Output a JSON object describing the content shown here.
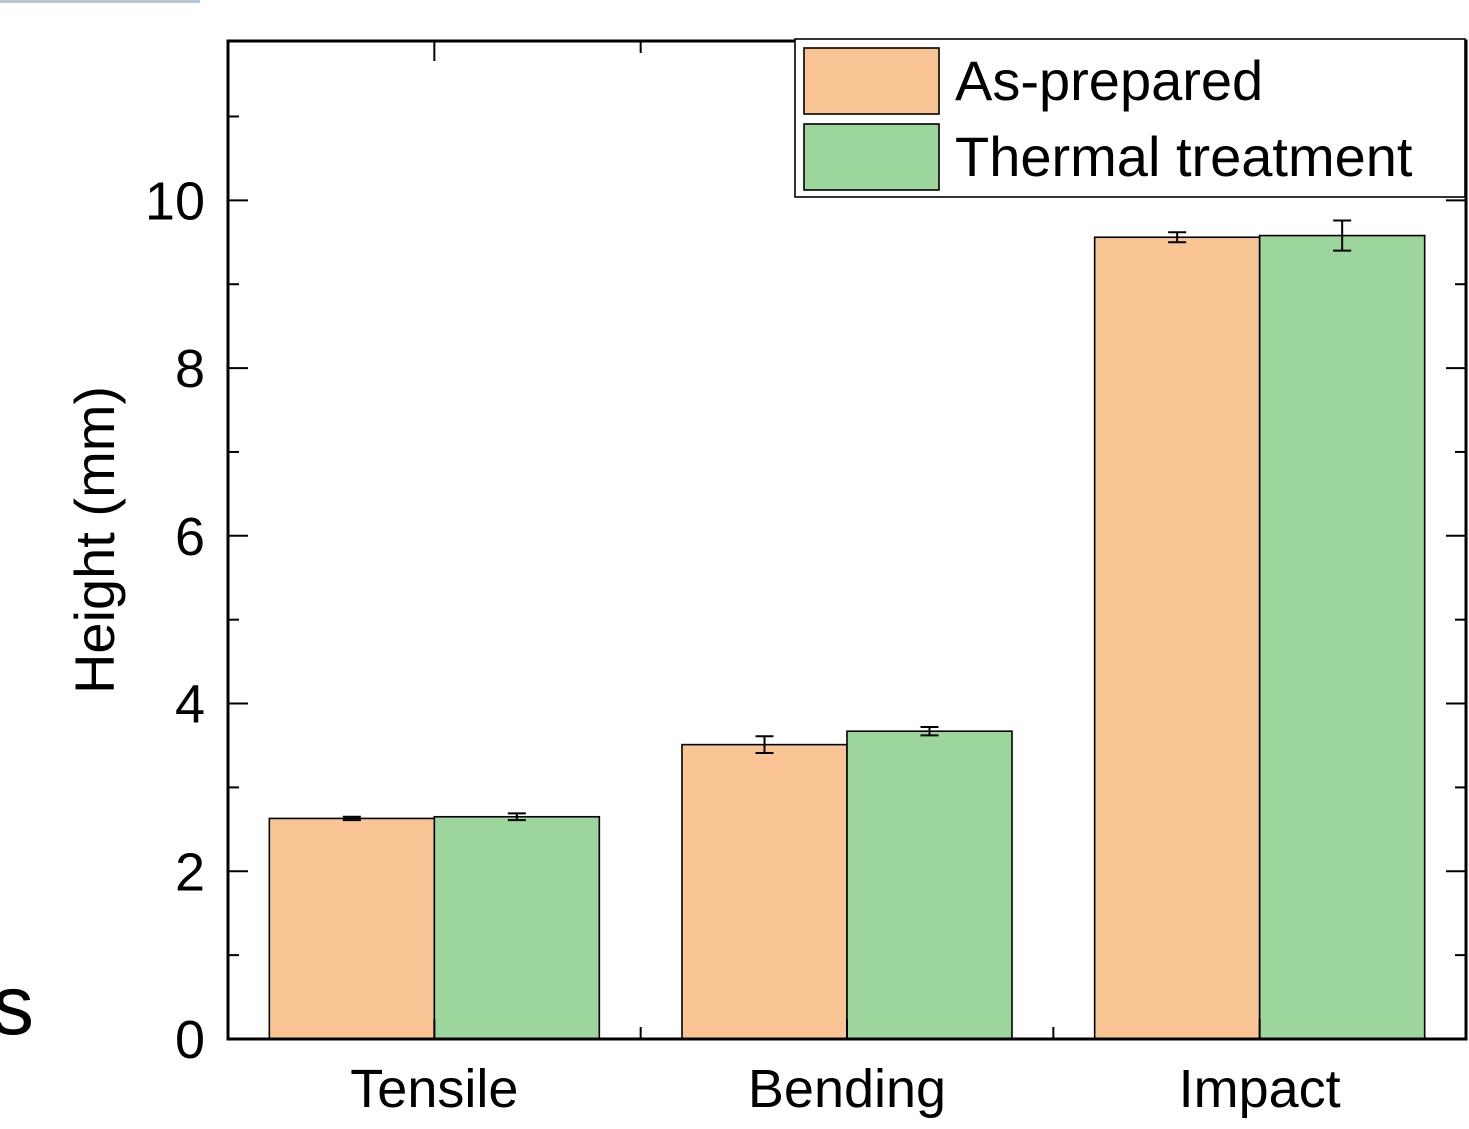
{
  "chart_data": {
    "type": "bar",
    "categories": [
      "Tensile",
      "Bending",
      "Impact"
    ],
    "series": [
      {
        "name": "As-prepared",
        "color": "#F9C595",
        "values": [
          2.63,
          3.51,
          9.56
        ],
        "errors": [
          0.02,
          0.1,
          0.06
        ]
      },
      {
        "name": "Thermal treatment",
        "color": "#9DD69C",
        "values": [
          2.65,
          3.67,
          9.58
        ],
        "errors": [
          0.04,
          0.05,
          0.18
        ]
      }
    ],
    "ylabel": "Height (mm)",
    "xlabel": "",
    "ylim": [
      0,
      11.9
    ],
    "yticks": [
      0,
      2,
      4,
      6,
      8,
      10
    ],
    "yminor_ticks": [
      1,
      3,
      5,
      7,
      9,
      11
    ],
    "grid": false,
    "legend_position": "top-right"
  },
  "edge_fragment_text": "s"
}
